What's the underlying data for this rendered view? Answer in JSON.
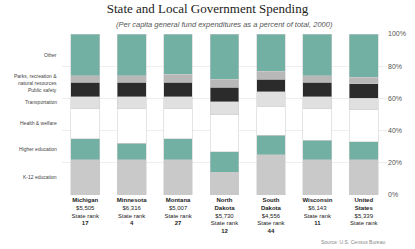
{
  "chart_data": {
    "type": "bar",
    "stacked": true,
    "title": "State and Local Government Spending",
    "subtitle": "(Per capita general fund expenditures as a percent of total, 2000)",
    "source": "Source: U.S. Census Bureau",
    "categories": [
      "Michigan",
      "Minnesota",
      "Montana",
      "North Dakota",
      "South Dakota",
      "Wisconsin",
      "United States"
    ],
    "amount_labels": [
      "$5,505",
      "$6,316",
      "$5,007",
      "$5,730",
      "$4,556",
      "$6,143",
      "$5,339"
    ],
    "rank_label": "State rank",
    "ranks": [
      17,
      4,
      27,
      12,
      44,
      11,
      null
    ],
    "series": [
      {
        "name": "K-12 education",
        "color": "#c9c9c9",
        "values": [
          22,
          22,
          22,
          14,
          25,
          22,
          22
        ]
      },
      {
        "name": "Higher education",
        "color": "#72b0a3",
        "values": [
          13,
          10,
          13,
          13,
          12,
          12,
          11
        ]
      },
      {
        "name": "Health & welfare",
        "color": "#ffffff",
        "values": [
          19,
          22,
          19,
          23,
          18,
          20,
          20
        ]
      },
      {
        "name": "Transportation",
        "color": "#e0e0e0",
        "values": [
          7,
          7,
          7,
          8,
          9,
          7,
          7
        ]
      },
      {
        "name": "Public safety",
        "color": "#2b2b2b",
        "values": [
          9,
          9,
          9,
          9,
          8,
          9,
          9
        ]
      },
      {
        "name": "Parks, recreation &\nnatural resources",
        "color": "#b8b8b8",
        "values": [
          4,
          4,
          5,
          5,
          5,
          4,
          4
        ]
      },
      {
        "name": "Other",
        "color": "#72b0a3",
        "values": [
          26,
          26,
          25,
          28,
          23,
          26,
          27
        ]
      }
    ],
    "ylim": [
      0,
      100
    ],
    "yticks": [
      {
        "value": 0,
        "label": "0%"
      },
      {
        "value": 20,
        "label": "20%"
      },
      {
        "value": 40,
        "label": "40%"
      },
      {
        "value": 60,
        "label": "60%"
      },
      {
        "value": 80,
        "label": "80%"
      },
      {
        "value": 100,
        "label": "100%"
      }
    ],
    "grid": true
  }
}
